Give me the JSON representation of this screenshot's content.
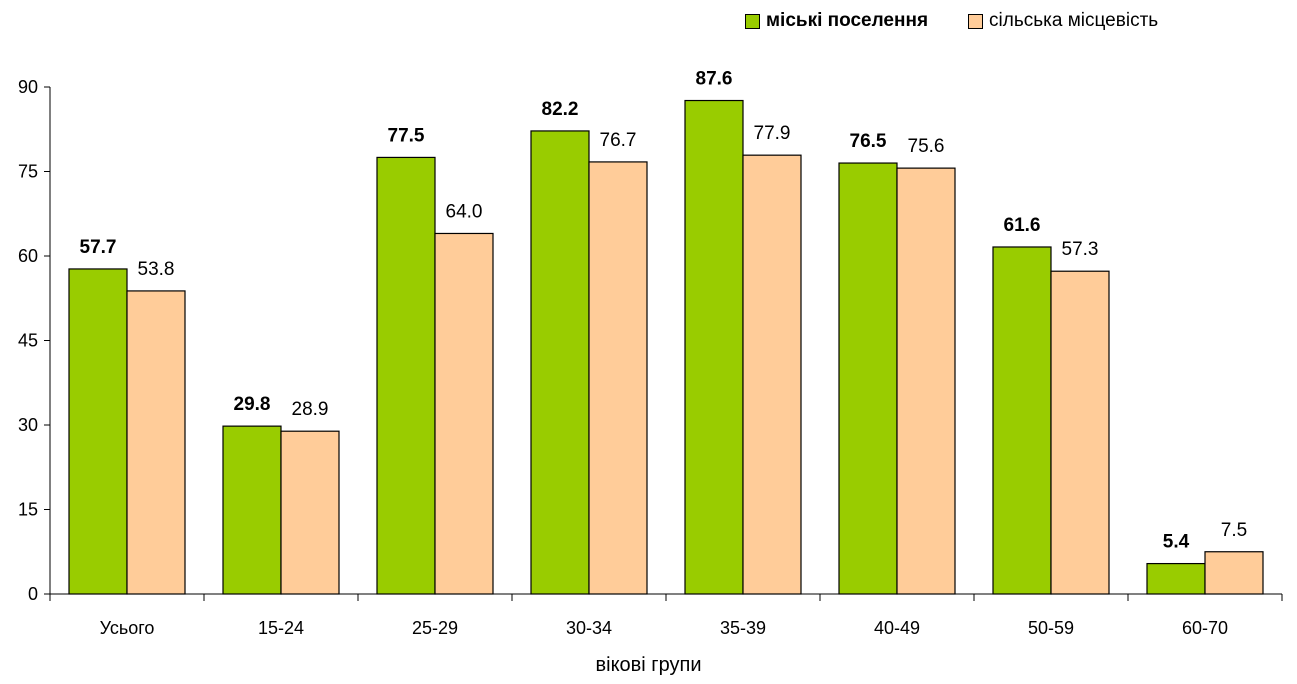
{
  "chart_data": {
    "type": "bar",
    "categories": [
      "Усього",
      "15-24",
      "25-29",
      "30-34",
      "35-39",
      "40-49",
      "50-59",
      "60-70"
    ],
    "series": [
      {
        "name": "міські поселення",
        "values": [
          57.7,
          29.8,
          77.5,
          82.2,
          87.6,
          76.5,
          61.6,
          5.4
        ],
        "color": "#99CC00",
        "label_weight": "bold"
      },
      {
        "name": "сільська місцевість",
        "values": [
          53.8,
          28.9,
          64.0,
          76.7,
          77.9,
          75.6,
          57.3,
          7.5
        ],
        "color": "#FFCC99",
        "label_weight": "normal"
      }
    ],
    "value_labels": [
      [
        "57.7",
        "29.8",
        "77.5",
        "82.2",
        "87.6",
        "76.5",
        "61.6",
        "5.4"
      ],
      [
        "53.8",
        "28.9",
        "64.0",
        "76.7",
        "77.9",
        "75.6",
        "57.3",
        "7.5"
      ]
    ],
    "xlabel": "вікові групи",
    "ylabel": "",
    "ylim": [
      0,
      90
    ],
    "yticks": [
      "0",
      "15",
      "30",
      "45",
      "60",
      "75",
      "90"
    ],
    "ytick_values": [
      0,
      15,
      30,
      45,
      60,
      75,
      90
    ],
    "grid": false,
    "legend_position": "top-right"
  }
}
